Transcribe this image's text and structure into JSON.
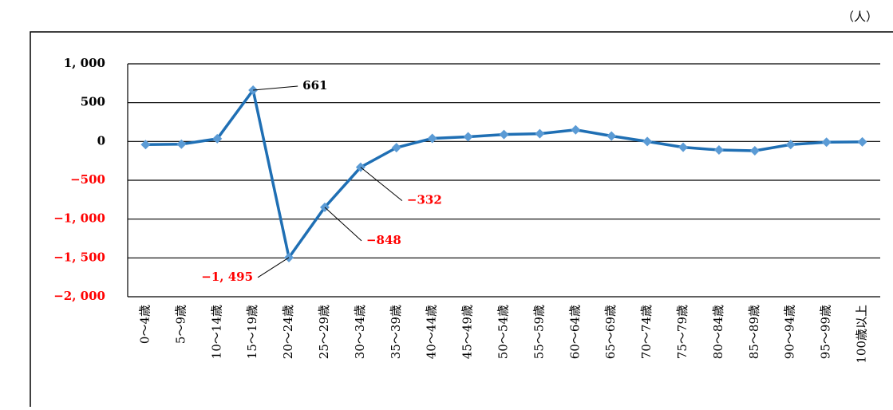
{
  "chart_data": {
    "type": "line",
    "unit_label": "（人）",
    "categories": [
      "0～4歳",
      "5～9歳",
      "10～14歳",
      "15～19歳",
      "20～24歳",
      "25～29歳",
      "30～34歳",
      "35～39歳",
      "40～44歳",
      "45～49歳",
      "50～54歳",
      "55～59歳",
      "60～64歳",
      "65～69歳",
      "70～74歳",
      "75～79歳",
      "80～84歳",
      "85～89歳",
      "90～94歳",
      "95～99歳",
      "100歳以上"
    ],
    "series": [
      {
        "color": "#1f6fb4",
        "marker_color": "#5b9bd5",
        "values": [
          -40,
          -35,
          35,
          661,
          -1495,
          -848,
          -332,
          -80,
          40,
          60,
          90,
          100,
          150,
          70,
          0,
          -75,
          -110,
          -120,
          -40,
          -10,
          -5
        ],
        "value_labels": [
          null,
          null,
          null,
          "661",
          "−1, 495",
          "−848",
          "−332",
          null,
          null,
          null,
          null,
          null,
          null,
          null,
          null,
          null,
          null,
          null,
          null,
          null,
          null
        ]
      }
    ],
    "ylim": [
      -2000,
      1000
    ],
    "yticks": [
      {
        "value": -2000,
        "label": "−2, 000"
      },
      {
        "value": -1500,
        "label": "−1, 500"
      },
      {
        "value": -1000,
        "label": "−1, 000"
      },
      {
        "value": -500,
        "label": "−500"
      },
      0,
      500,
      {
        "value": 1000,
        "label": "1, 000"
      }
    ],
    "negative_color": "#ff0000",
    "grid": true
  }
}
